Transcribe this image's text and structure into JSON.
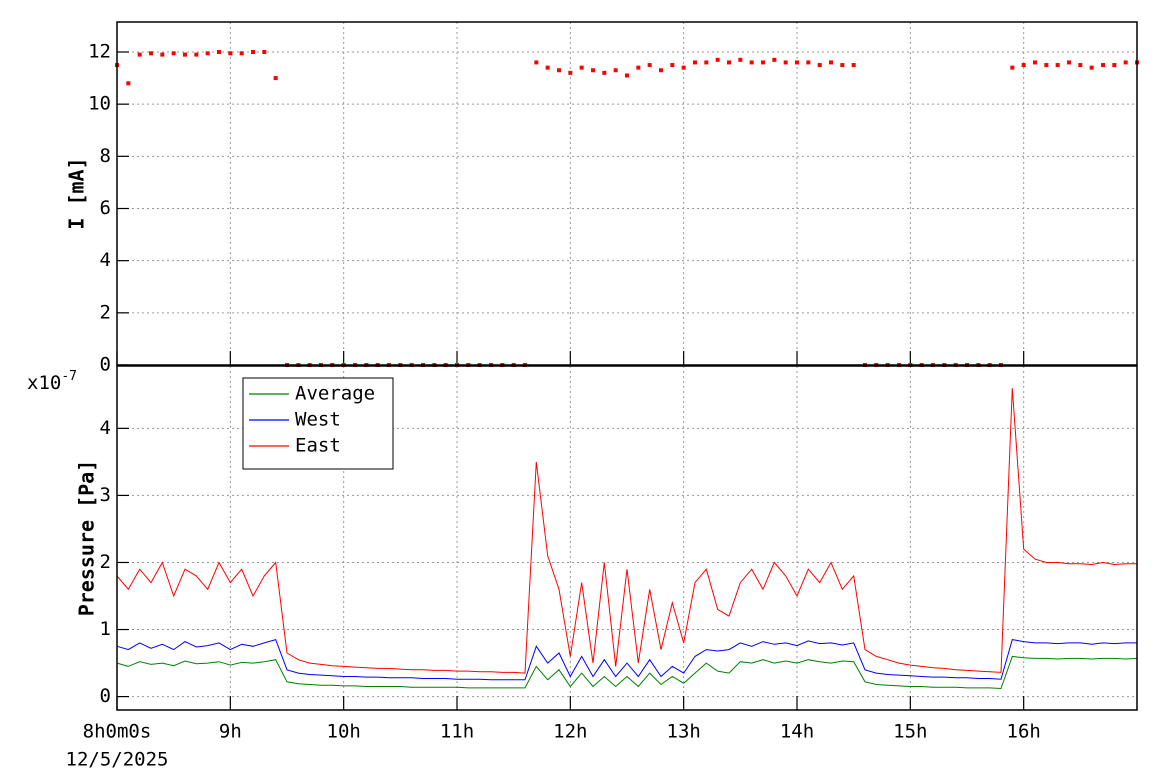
{
  "chart_data": [
    {
      "type": "scatter",
      "y_label": "I [mA]",
      "x": [
        8.0,
        8.1,
        8.2,
        8.3,
        8.4,
        8.5,
        8.6,
        8.7,
        8.8,
        8.9,
        9.0,
        9.1,
        9.2,
        9.3,
        9.4,
        9.5,
        9.6,
        9.7,
        9.8,
        9.9,
        10.0,
        10.1,
        10.2,
        10.3,
        10.4,
        10.5,
        10.6,
        10.7,
        10.8,
        10.9,
        11.0,
        11.1,
        11.2,
        11.3,
        11.4,
        11.5,
        11.6,
        11.7,
        11.8,
        11.9,
        12.0,
        12.1,
        12.2,
        12.3,
        12.4,
        12.5,
        12.6,
        12.7,
        12.8,
        12.9,
        13.0,
        13.1,
        13.2,
        13.3,
        13.4,
        13.5,
        13.6,
        13.7,
        13.8,
        13.9,
        14.0,
        14.1,
        14.2,
        14.3,
        14.4,
        14.5,
        14.6,
        14.7,
        14.8,
        14.9,
        15.0,
        15.1,
        15.2,
        15.3,
        15.4,
        15.5,
        15.6,
        15.7,
        15.8,
        15.9,
        16.0,
        16.1,
        16.2,
        16.3,
        16.4,
        16.5,
        16.6,
        16.7,
        16.8,
        16.9,
        17.0
      ],
      "series": [
        {
          "color": "#ff0000",
          "values": [
            11.5,
            10.8,
            11.9,
            11.95,
            11.9,
            11.95,
            11.9,
            11.9,
            11.95,
            12.0,
            11.95,
            11.95,
            12.0,
            12.0,
            11.0,
            0,
            0,
            0,
            0,
            0,
            0,
            0,
            0,
            0,
            0,
            0,
            0,
            0,
            0,
            0,
            0,
            0,
            0,
            0,
            0,
            0,
            0,
            11.6,
            11.4,
            11.3,
            11.2,
            11.4,
            11.3,
            11.2,
            11.3,
            11.1,
            11.4,
            11.5,
            11.3,
            11.5,
            11.4,
            11.6,
            11.6,
            11.7,
            11.6,
            11.7,
            11.6,
            11.6,
            11.7,
            11.6,
            11.6,
            11.6,
            11.5,
            11.6,
            11.5,
            11.5,
            0,
            0,
            0,
            0,
            0,
            0,
            0,
            0,
            0,
            0,
            0,
            0,
            0,
            11.4,
            11.5,
            11.6,
            11.5,
            11.5,
            11.6,
            11.5,
            11.4,
            11.5,
            11.5,
            11.6,
            11.6
          ]
        }
      ],
      "xlim": [
        8,
        17
      ],
      "xticks": [
        8,
        9,
        10,
        11,
        12,
        13,
        14,
        15,
        16
      ],
      "ylim": [
        0,
        13.15
      ],
      "yticks": [
        0,
        2,
        4,
        6,
        8,
        10,
        12
      ],
      "grid": true
    },
    {
      "type": "line",
      "y_label": "Pressure [Pa]",
      "y_multiplier": "x10",
      "y_multiplier_exponent": "-7",
      "date_label": "12/5/2025",
      "legend": "upper left",
      "x": [
        8.0,
        8.1,
        8.2,
        8.3,
        8.4,
        8.5,
        8.6,
        8.7,
        8.8,
        8.9,
        9.0,
        9.1,
        9.2,
        9.3,
        9.4,
        9.5,
        9.6,
        9.7,
        9.8,
        9.9,
        10.0,
        10.1,
        10.2,
        10.3,
        10.4,
        10.5,
        10.6,
        10.7,
        10.8,
        10.9,
        11.0,
        11.1,
        11.2,
        11.3,
        11.4,
        11.5,
        11.6,
        11.7,
        11.8,
        11.9,
        12.0,
        12.1,
        12.2,
        12.3,
        12.4,
        12.5,
        12.6,
        12.7,
        12.8,
        12.9,
        13.0,
        13.1,
        13.2,
        13.3,
        13.4,
        13.5,
        13.6,
        13.7,
        13.8,
        13.9,
        14.0,
        14.1,
        14.2,
        14.3,
        14.4,
        14.5,
        14.6,
        14.7,
        14.8,
        14.9,
        15.0,
        15.1,
        15.2,
        15.3,
        15.4,
        15.5,
        15.6,
        15.7,
        15.8,
        15.9,
        16.0,
        16.1,
        16.2,
        16.3,
        16.4,
        16.5,
        16.6,
        16.7,
        16.8,
        16.9,
        17.0
      ],
      "series": [
        {
          "name": "Average",
          "color": "#008000",
          "values": [
            0.5,
            0.45,
            0.52,
            0.48,
            0.5,
            0.46,
            0.53,
            0.49,
            0.5,
            0.52,
            0.47,
            0.51,
            0.5,
            0.52,
            0.55,
            0.22,
            0.19,
            0.18,
            0.17,
            0.17,
            0.16,
            0.16,
            0.15,
            0.15,
            0.15,
            0.15,
            0.14,
            0.14,
            0.14,
            0.14,
            0.14,
            0.13,
            0.13,
            0.13,
            0.13,
            0.13,
            0.13,
            0.45,
            0.25,
            0.4,
            0.15,
            0.35,
            0.15,
            0.3,
            0.15,
            0.3,
            0.15,
            0.35,
            0.18,
            0.3,
            0.2,
            0.35,
            0.5,
            0.38,
            0.35,
            0.52,
            0.5,
            0.55,
            0.5,
            0.53,
            0.5,
            0.55,
            0.52,
            0.5,
            0.53,
            0.52,
            0.22,
            0.18,
            0.17,
            0.16,
            0.15,
            0.15,
            0.14,
            0.14,
            0.14,
            0.13,
            0.13,
            0.13,
            0.12,
            0.6,
            0.58,
            0.57,
            0.57,
            0.56,
            0.57,
            0.57,
            0.56,
            0.57,
            0.57,
            0.56,
            0.57
          ]
        },
        {
          "name": "West",
          "color": "#0000ff",
          "values": [
            0.75,
            0.7,
            0.8,
            0.72,
            0.78,
            0.7,
            0.82,
            0.74,
            0.76,
            0.8,
            0.7,
            0.78,
            0.75,
            0.8,
            0.85,
            0.4,
            0.35,
            0.33,
            0.32,
            0.31,
            0.3,
            0.3,
            0.29,
            0.29,
            0.28,
            0.28,
            0.28,
            0.27,
            0.27,
            0.27,
            0.26,
            0.26,
            0.26,
            0.25,
            0.25,
            0.25,
            0.25,
            0.75,
            0.5,
            0.65,
            0.3,
            0.6,
            0.3,
            0.55,
            0.3,
            0.5,
            0.3,
            0.55,
            0.3,
            0.45,
            0.35,
            0.6,
            0.7,
            0.68,
            0.7,
            0.8,
            0.75,
            0.82,
            0.78,
            0.8,
            0.76,
            0.83,
            0.79,
            0.8,
            0.77,
            0.8,
            0.4,
            0.35,
            0.33,
            0.32,
            0.31,
            0.3,
            0.29,
            0.29,
            0.28,
            0.28,
            0.27,
            0.27,
            0.26,
            0.85,
            0.82,
            0.8,
            0.8,
            0.79,
            0.8,
            0.8,
            0.78,
            0.8,
            0.79,
            0.8,
            0.8
          ]
        },
        {
          "name": "East",
          "color": "#ff0000",
          "values": [
            1.8,
            1.6,
            1.9,
            1.7,
            2.0,
            1.5,
            1.9,
            1.8,
            1.6,
            2.0,
            1.7,
            1.9,
            1.5,
            1.8,
            2.0,
            0.65,
            0.55,
            0.5,
            0.48,
            0.46,
            0.45,
            0.44,
            0.43,
            0.42,
            0.42,
            0.41,
            0.4,
            0.4,
            0.39,
            0.39,
            0.38,
            0.38,
            0.37,
            0.37,
            0.36,
            0.36,
            0.35,
            3.5,
            2.1,
            1.6,
            0.6,
            1.7,
            0.5,
            2.0,
            0.45,
            1.9,
            0.5,
            1.6,
            0.7,
            1.4,
            0.8,
            1.7,
            1.9,
            1.3,
            1.2,
            1.7,
            1.9,
            1.6,
            2.0,
            1.8,
            1.5,
            1.9,
            1.7,
            2.0,
            1.6,
            1.8,
            0.7,
            0.6,
            0.55,
            0.5,
            0.47,
            0.45,
            0.43,
            0.42,
            0.4,
            0.39,
            0.38,
            0.37,
            0.36,
            4.6,
            2.2,
            2.05,
            2.0,
            2.0,
            1.98,
            1.98,
            1.97,
            2.0,
            1.97,
            1.98,
            1.98
          ]
        }
      ],
      "xlim": [
        8,
        17
      ],
      "xticks": [
        {
          "value": 8,
          "label": "8h0m0s"
        },
        {
          "value": 9,
          "label": "9h"
        },
        {
          "value": 10,
          "label": "10h"
        },
        {
          "value": 11,
          "label": "11h"
        },
        {
          "value": 12,
          "label": "12h"
        },
        {
          "value": 13,
          "label": "13h"
        },
        {
          "value": 14,
          "label": "14h"
        },
        {
          "value": 15,
          "label": "15h"
        },
        {
          "value": 16,
          "label": "16h"
        }
      ],
      "ylim": [
        -0.2,
        4.93
      ],
      "yticks": [
        0,
        1,
        2,
        3,
        4
      ],
      "grid": true
    }
  ]
}
